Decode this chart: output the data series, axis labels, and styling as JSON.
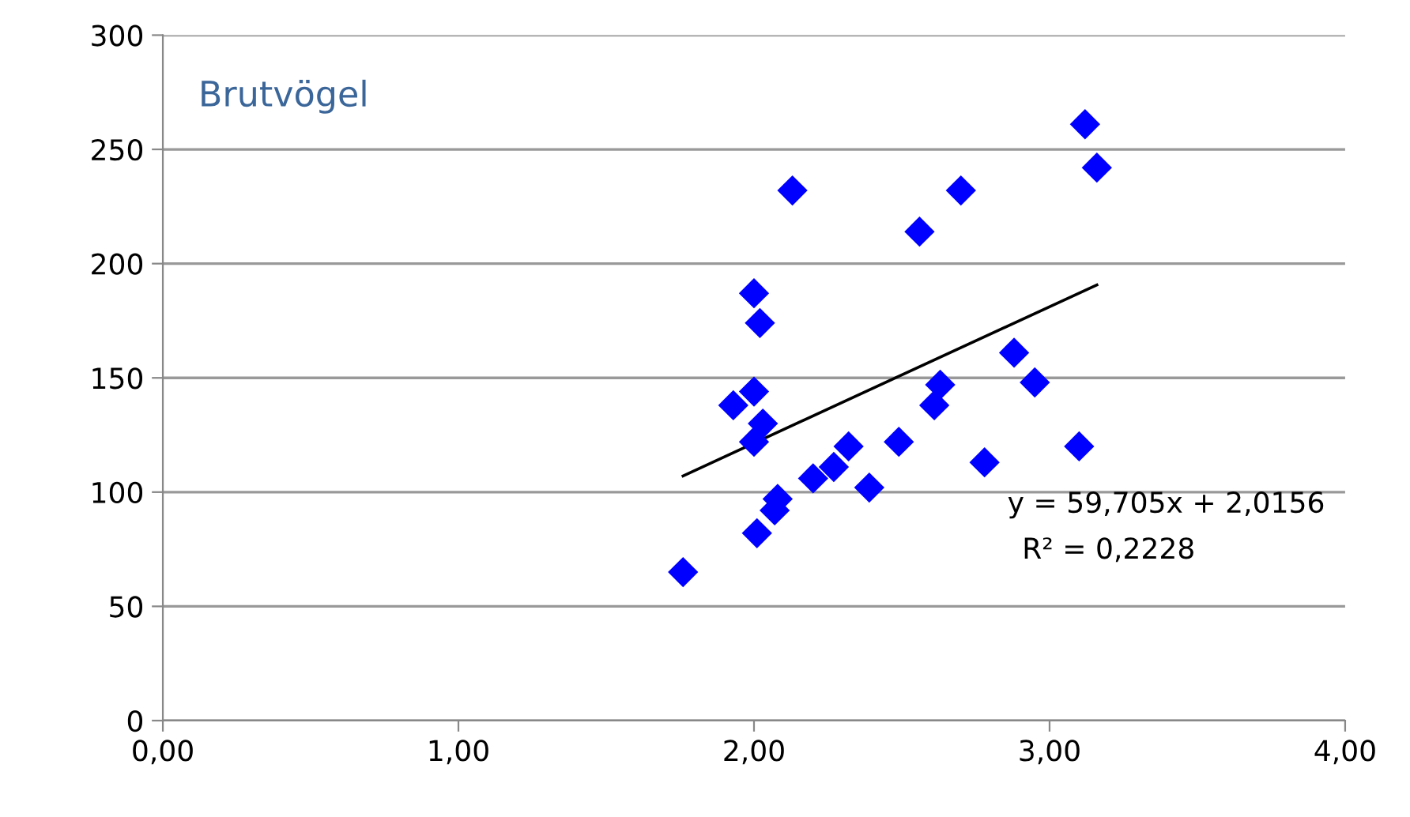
{
  "chart_data": {
    "type": "scatter",
    "title": "Brutvögel",
    "series": [
      {
        "color": "#0000ff",
        "marker": "diamond",
        "x": [
          1.76,
          1.93,
          2.0,
          2.0,
          2.02,
          2.0,
          2.03,
          2.01,
          2.07,
          2.08,
          2.13,
          2.2,
          2.27,
          2.32,
          2.39,
          2.49,
          2.56,
          2.7,
          2.61,
          2.63,
          2.78,
          2.88,
          2.95,
          3.1,
          3.12,
          3.16
        ],
        "values": [
          65,
          138,
          144,
          187,
          174,
          122,
          130,
          82,
          92,
          97,
          232,
          106,
          111,
          120,
          102,
          122,
          214,
          232,
          138,
          147,
          113,
          161,
          148,
          120,
          261,
          242
        ]
      },
      {
        "type": "line",
        "color": "#000000",
        "marker": "none",
        "x": [
          1.76,
          3.16
        ],
        "values": [
          107.1,
          190.7
        ]
      }
    ],
    "annotations": [
      "y = 59,705x + 2,0156",
      "R² = 0,2228"
    ],
    "xlim": [
      0,
      4
    ],
    "ylim": [
      0,
      300
    ],
    "xticks": [
      {
        "value": 0,
        "label": "0,00"
      },
      {
        "value": 1,
        "label": "1,00"
      },
      {
        "value": 2,
        "label": "2,00"
      },
      {
        "value": 3,
        "label": "3,00"
      },
      {
        "value": 4,
        "label": "4,00"
      }
    ],
    "yticks": [
      0,
      50,
      100,
      150,
      200,
      250,
      300
    ],
    "grid": "y",
    "legend": false
  }
}
